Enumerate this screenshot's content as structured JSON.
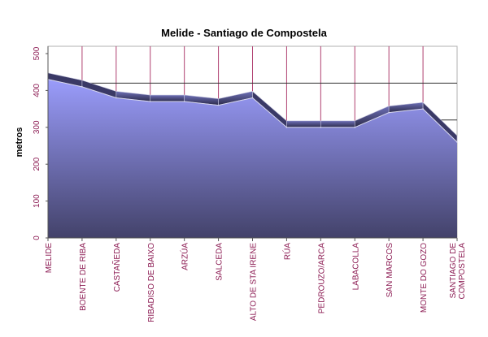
{
  "chart_data": {
    "type": "area",
    "title": "Melide - Santiago de Compostela",
    "xlabel": "",
    "ylabel": "metros",
    "ylim": [
      0,
      500
    ],
    "yticks": [
      "0",
      "100",
      "200",
      "300",
      "400",
      "500"
    ],
    "categories": [
      "MELIDE",
      "BOENTE DE RIBA",
      "CASTAÑEDA",
      "RIBADISO DE BAIXO",
      "ARZÚA",
      "SALCEDA",
      "ALTO DE STA IRENE",
      "RÚA",
      "PEDROUZO/ARCA",
      "LABACOLLA",
      "SAN MARCOS",
      "MONTE DO GOZO",
      "SANTIAGO DE COMPOSTELA"
    ],
    "values": [
      430,
      410,
      380,
      370,
      370,
      360,
      380,
      300,
      300,
      300,
      340,
      350,
      260
    ],
    "grid": true,
    "reference_lines": [
      420,
      320
    ],
    "colors": {
      "area_top": "#9a9cfb",
      "area_bottom": "#43426a",
      "top_band": "#5a5a94",
      "vgrid": "#b04070",
      "ticks": "#8b1a52"
    }
  }
}
